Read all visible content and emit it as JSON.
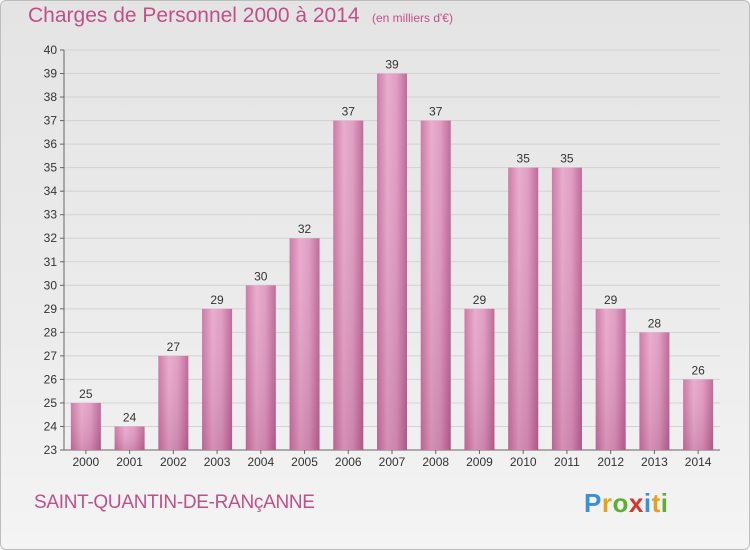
{
  "header": {
    "title": "Charges de Personnel 2000 à 2014",
    "subtitle": "(en milliers d'€)"
  },
  "footer": {
    "commune": "SAINT-QUANTIN-DE-RANçANNE",
    "logo": {
      "letters": [
        "P",
        "r",
        "o",
        "x",
        "i",
        "t",
        "i"
      ],
      "colors": [
        "#3a8fd6",
        "#e8a21a",
        "#5cb030",
        "#d6342e",
        "#3a8fd6",
        "#e8a21a",
        "#5cb030"
      ]
    }
  },
  "chart_data": {
    "type": "bar",
    "title": "Charges de Personnel 2000 à 2014",
    "subtitle": "(en milliers d'€)",
    "categories": [
      "2000",
      "2001",
      "2002",
      "2003",
      "2004",
      "2005",
      "2006",
      "2007",
      "2008",
      "2009",
      "2010",
      "2011",
      "2012",
      "2013",
      "2014"
    ],
    "values": [
      25,
      24,
      27,
      29,
      30,
      32,
      37,
      39,
      37,
      29,
      35,
      35,
      29,
      28,
      26
    ],
    "ylim": [
      23,
      40
    ],
    "yticks": [
      23,
      24,
      25,
      26,
      27,
      28,
      29,
      30,
      31,
      32,
      33,
      34,
      35,
      36,
      37,
      38,
      39,
      40
    ],
    "grid": true,
    "bar_color": "#d98fb8"
  }
}
